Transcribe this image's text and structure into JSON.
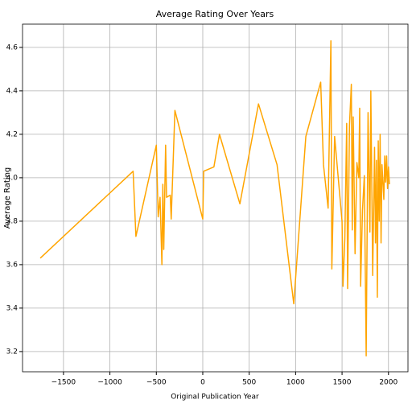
{
  "chart_data": {
    "type": "line",
    "title": "Average Rating Over Years",
    "xlabel": "Original Publication Year",
    "ylabel": "Average Rating",
    "x": [
      -1750,
      -750,
      -720,
      -500,
      -480,
      -460,
      -440,
      -430,
      -420,
      -400,
      -390,
      -350,
      -340,
      -300,
      0,
      10,
      120,
      180,
      400,
      600,
      800,
      980,
      1110,
      1270,
      1300,
      1350,
      1380,
      1390,
      1420,
      1500,
      1510,
      1530,
      1550,
      1560,
      1580,
      1600,
      1610,
      1620,
      1640,
      1660,
      1680,
      1690,
      1700,
      1720,
      1740,
      1760,
      1780,
      1800,
      1810,
      1820,
      1830,
      1850,
      1860,
      1870,
      1880,
      1890,
      1900,
      1910,
      1920,
      1930,
      1950,
      1960,
      1970,
      1980,
      1990,
      2000,
      2010
    ],
    "series": [
      {
        "name": "Average Rating",
        "color": "#ffa500",
        "values": [
          3.63,
          4.03,
          3.73,
          4.15,
          3.82,
          3.91,
          3.6,
          3.97,
          3.67,
          4.15,
          3.91,
          3.92,
          3.81,
          4.31,
          3.81,
          4.03,
          4.05,
          4.2,
          3.88,
          4.34,
          4.06,
          3.42,
          4.19,
          4.44,
          4.06,
          3.86,
          4.63,
          3.58,
          4.19,
          3.8,
          3.5,
          3.72,
          4.25,
          3.49,
          4.24,
          4.43,
          3.76,
          4.28,
          3.65,
          4.07,
          4.0,
          4.32,
          3.5,
          3.85,
          4.01,
          3.18,
          4.3,
          3.75,
          4.4,
          3.98,
          3.55,
          4.14,
          3.7,
          4.08,
          3.45,
          4.17,
          3.8,
          4.2,
          3.7,
          4.06,
          3.9,
          4.1,
          3.98,
          4.1,
          3.95,
          4.05,
          3.97
        ]
      }
    ],
    "xlim": [
      -1941,
      2210
    ],
    "ylim": [
      3.107,
      4.707
    ],
    "xticks": [
      {
        "value": -1500,
        "label": "−1500"
      },
      {
        "value": -1000,
        "label": "−1000"
      },
      {
        "value": -500,
        "label": "−500"
      },
      0,
      500,
      1000,
      1500,
      2000
    ],
    "yticks": [
      3.2,
      3.4,
      3.6,
      3.8,
      {
        "value": 4,
        "label": "4.0"
      },
      4.2,
      4.4,
      4.6
    ],
    "grid": true
  }
}
